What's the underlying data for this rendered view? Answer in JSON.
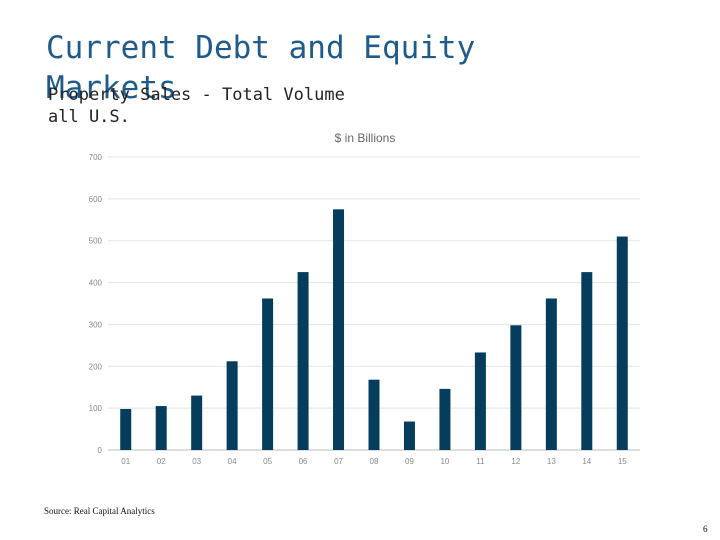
{
  "slide": {
    "title_line1": "Current Debt and Equity",
    "title_line2": "Markets",
    "subtitle_line1": "Property Sales - Total Volume",
    "subtitle_line2": "all U.S.",
    "source": "Source: Real Capital Analytics",
    "page_number": "6"
  },
  "chart_data": {
    "type": "bar",
    "title": "$ in Billions",
    "xlabel": "",
    "ylabel": "",
    "categories": [
      "01",
      "02",
      "03",
      "04",
      "05",
      "06",
      "07",
      "08",
      "09",
      "10",
      "11",
      "12",
      "13",
      "14",
      "15"
    ],
    "values": [
      98,
      105,
      130,
      212,
      362,
      425,
      575,
      168,
      68,
      146,
      233,
      298,
      362,
      425,
      510
    ],
    "ylim": [
      0,
      700
    ],
    "yticks": [
      0,
      100,
      200,
      300,
      400,
      500,
      600,
      700
    ],
    "grid": true,
    "bar_color": "#063c5c",
    "grid_color": "#e3e3e3",
    "tick_color": "#888888"
  }
}
